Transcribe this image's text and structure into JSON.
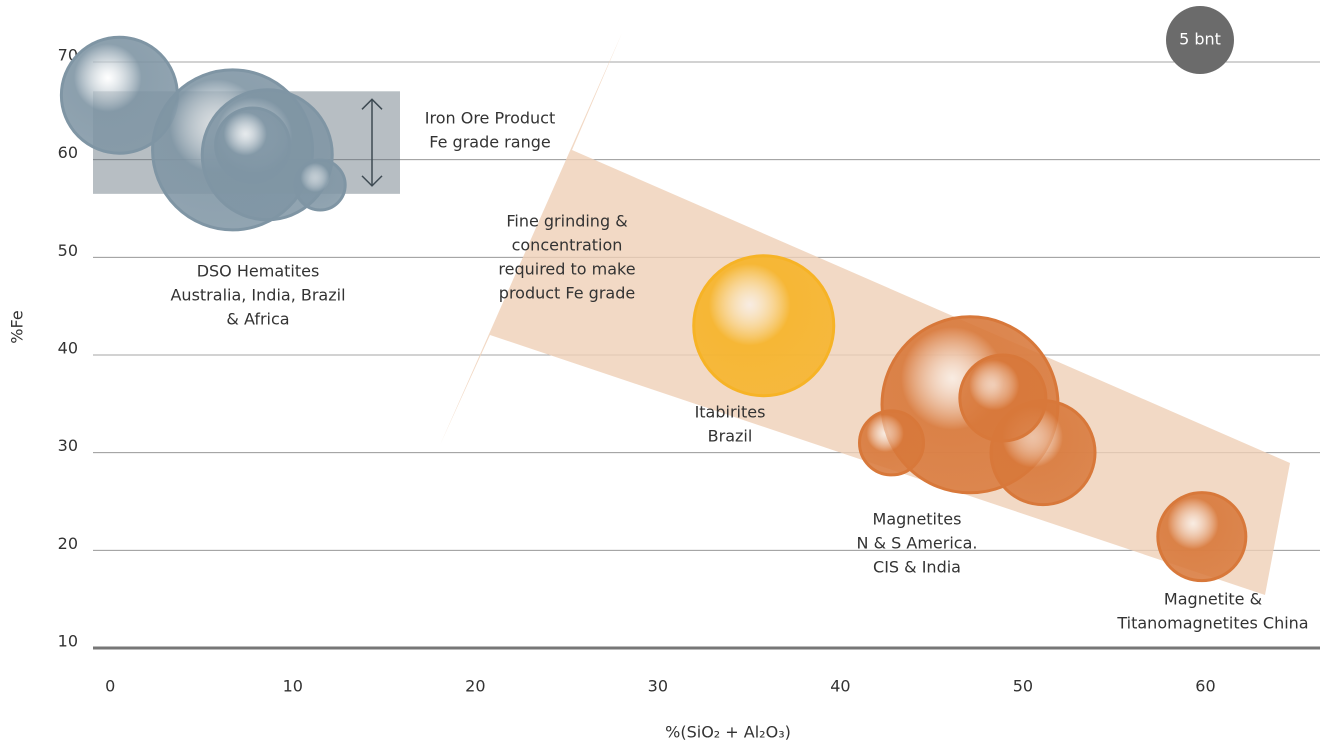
{
  "chart_data": {
    "type": "scatter",
    "x_label": "%(SiO₂ + Al₂O₃)",
    "y_label": "%Fe",
    "xlim": [
      -1,
      66
    ],
    "ylim": [
      10,
      70
    ],
    "xticks": [
      0,
      10,
      20,
      30,
      40,
      50,
      60
    ],
    "yticks": [
      10,
      20,
      30,
      40,
      50,
      60,
      70
    ],
    "grid": true,
    "grade_band": [
      56.5,
      67
    ],
    "annotations": {
      "grade": [
        "Iron Ore Product",
        "Fe grade range"
      ],
      "arrow": [
        "Fine grinding &",
        "concentration",
        "required to make",
        "product Fe grade"
      ],
      "size_badge": "5 bnt"
    },
    "series": [
      {
        "label": [
          "DSO Hematites",
          "Australia, India, Brazil",
          "& Africa"
        ],
        "color": "#7f95a4",
        "x": [
          0.5,
          6.7,
          8.6,
          7.8,
          11.5
        ],
        "values": [
          66.6,
          61,
          60.5,
          61.5,
          57.4
        ],
        "sizes": [
          5.8,
          8,
          6.5,
          3.7,
          2.5
        ]
      },
      {
        "label": [
          "Itabirites",
          "Brazil"
        ],
        "color": "#f6b326",
        "x": [
          35.8
        ],
        "values": [
          43
        ],
        "sizes": [
          7
        ]
      },
      {
        "label": [
          "Magnetites",
          "N & S America.",
          "CIS & India"
        ],
        "color": "#d8783a",
        "x": [
          47.1,
          42.8,
          51.1,
          48.9
        ],
        "values": [
          34.9,
          31,
          30,
          35.6
        ],
        "sizes": [
          8.8,
          3.2,
          5.2,
          4.3
        ]
      },
      {
        "label": [
          "Magnetite &",
          "Titanomagnetites China"
        ],
        "color": "#d8783a",
        "x": [
          59.8
        ],
        "values": [
          21.4
        ],
        "sizes": [
          4.4
        ]
      }
    ]
  }
}
